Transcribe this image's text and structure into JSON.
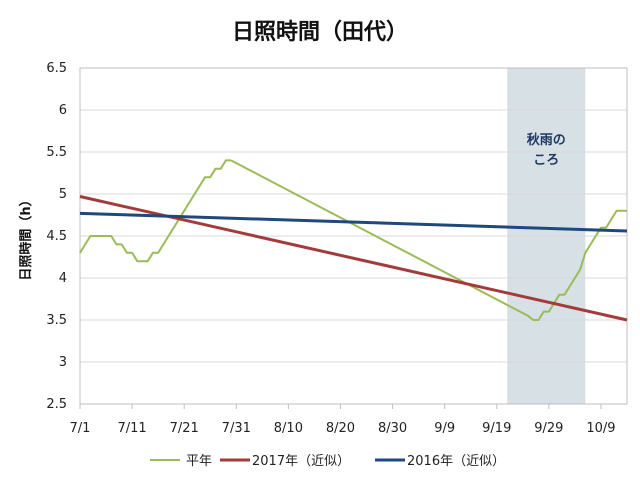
{
  "chart_data": {
    "type": "line",
    "title": "日照時間（田代）",
    "xlabel": "",
    "ylabel": "日照時間（h）",
    "ylim": [
      2.5,
      6.5
    ],
    "y_ticks": [
      "2.5",
      "3",
      "3.5",
      "4",
      "4.5",
      "5",
      "5.5",
      "6",
      "6.5"
    ],
    "x_ticks": [
      "7/1",
      "7/11",
      "7/21",
      "7/31",
      "8/10",
      "8/20",
      "8/30",
      "9/9",
      "9/19",
      "9/29",
      "10/9"
    ],
    "grid": true,
    "legend_position": "bottom",
    "shaded_region": {
      "from": "9/21",
      "to": "10/6",
      "label_lines": [
        "秋雨の",
        "ころ"
      ]
    },
    "series": [
      {
        "name": "平年",
        "color": "#9bbb59",
        "x": [
          "7/1",
          "7/2",
          "7/3",
          "7/4",
          "7/5",
          "7/6",
          "7/7",
          "7/8",
          "7/9",
          "7/10",
          "7/11",
          "7/12",
          "7/13",
          "7/14",
          "7/15",
          "7/16",
          "7/17",
          "7/18",
          "7/19",
          "7/20",
          "7/21",
          "7/22",
          "7/23",
          "7/24",
          "7/25",
          "7/26",
          "7/27",
          "7/28",
          "7/29",
          "7/30",
          "9/25",
          "9/26",
          "9/27",
          "9/28",
          "9/29",
          "9/30",
          "10/1",
          "10/2",
          "10/3",
          "10/4",
          "10/5",
          "10/6",
          "10/7",
          "10/8",
          "10/9",
          "10/10",
          "10/11",
          "10/12",
          "10/13",
          "10/14"
        ],
        "y": [
          4.3,
          4.4,
          4.5,
          4.5,
          4.5,
          4.5,
          4.5,
          4.4,
          4.4,
          4.3,
          4.3,
          4.2,
          4.2,
          4.2,
          4.3,
          4.3,
          4.4,
          4.5,
          4.6,
          4.7,
          4.8,
          4.9,
          5.0,
          5.1,
          5.2,
          5.2,
          5.3,
          5.3,
          5.4,
          5.4,
          3.55,
          3.5,
          3.5,
          3.6,
          3.6,
          3.7,
          3.8,
          3.8,
          3.9,
          4.0,
          4.1,
          4.3,
          4.4,
          4.5,
          4.6,
          4.6,
          4.7,
          4.8,
          4.8,
          4.8
        ]
      },
      {
        "name": "2017年（近似）",
        "color": "#a33b3b",
        "x": [
          "7/1",
          "10/14"
        ],
        "y": [
          4.97,
          3.5
        ]
      },
      {
        "name": "2016年（近似）",
        "color": "#1f497d",
        "x": [
          "7/1",
          "10/14"
        ],
        "y": [
          4.77,
          4.56
        ]
      }
    ]
  }
}
